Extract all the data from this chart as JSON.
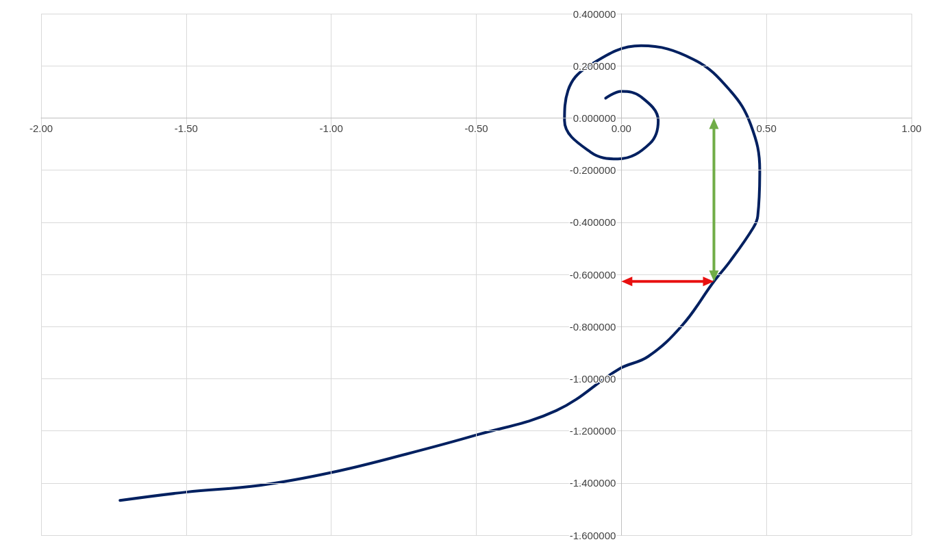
{
  "chart_data": {
    "type": "line",
    "marker": "none",
    "line_style": "solid",
    "grid": true,
    "xlim": [
      -2,
      1
    ],
    "ylim": [
      -1.6,
      0.4
    ],
    "xticks": [
      {
        "value": -2,
        "label": "-2.00"
      },
      {
        "value": -1.5,
        "label": "-1.50"
      },
      {
        "value": -1,
        "label": "-1.00"
      },
      {
        "value": -0.5,
        "label": "-0.50"
      },
      {
        "value": 0,
        "label": "0.00"
      },
      {
        "value": 0.5,
        "label": "0.50"
      },
      {
        "value": 1,
        "label": "1.00"
      }
    ],
    "yticks": [
      {
        "value": -1.6,
        "label": "-1.600000"
      },
      {
        "value": -1.4,
        "label": "-1.400000"
      },
      {
        "value": -1.2,
        "label": "-1.200000"
      },
      {
        "value": -1,
        "label": "-1.000000"
      },
      {
        "value": -0.8,
        "label": "-0.800000"
      },
      {
        "value": -0.6,
        "label": "-0.600000"
      },
      {
        "value": -0.4,
        "label": "-0.400000"
      },
      {
        "value": -0.2,
        "label": "-0.200000"
      },
      {
        "value": 0,
        "label": "0.000000"
      },
      {
        "value": 0.2,
        "label": "0.200000"
      },
      {
        "value": 0.4,
        "label": "0.400000"
      }
    ],
    "series": [
      {
        "color": "#002060",
        "x": [
          -0.054,
          0,
          0.068,
          0.127,
          0.099,
          -0.012,
          -0.106,
          -0.196,
          -0.184,
          -0.113,
          0.068,
          0.248,
          0.375,
          0.446,
          0.477,
          0.47,
          0.455,
          0.375,
          0.319,
          0.21,
          0.092,
          -0.007,
          -0.224,
          -0.5,
          -0.741,
          -1.0,
          -1.246,
          -1.501,
          -1.728
        ],
        "values": [
          0.076,
          0.102,
          0.081,
          -0.01,
          -0.097,
          -0.157,
          -0.131,
          -0.01,
          0.105,
          0.199,
          0.277,
          0.225,
          0.105,
          -0.026,
          -0.201,
          -0.376,
          -0.42,
          -0.549,
          -0.627,
          -0.795,
          -0.915,
          -0.962,
          -1.122,
          -1.216,
          -1.289,
          -1.36,
          -1.409,
          -1.435,
          -1.467
        ]
      }
    ]
  }
}
